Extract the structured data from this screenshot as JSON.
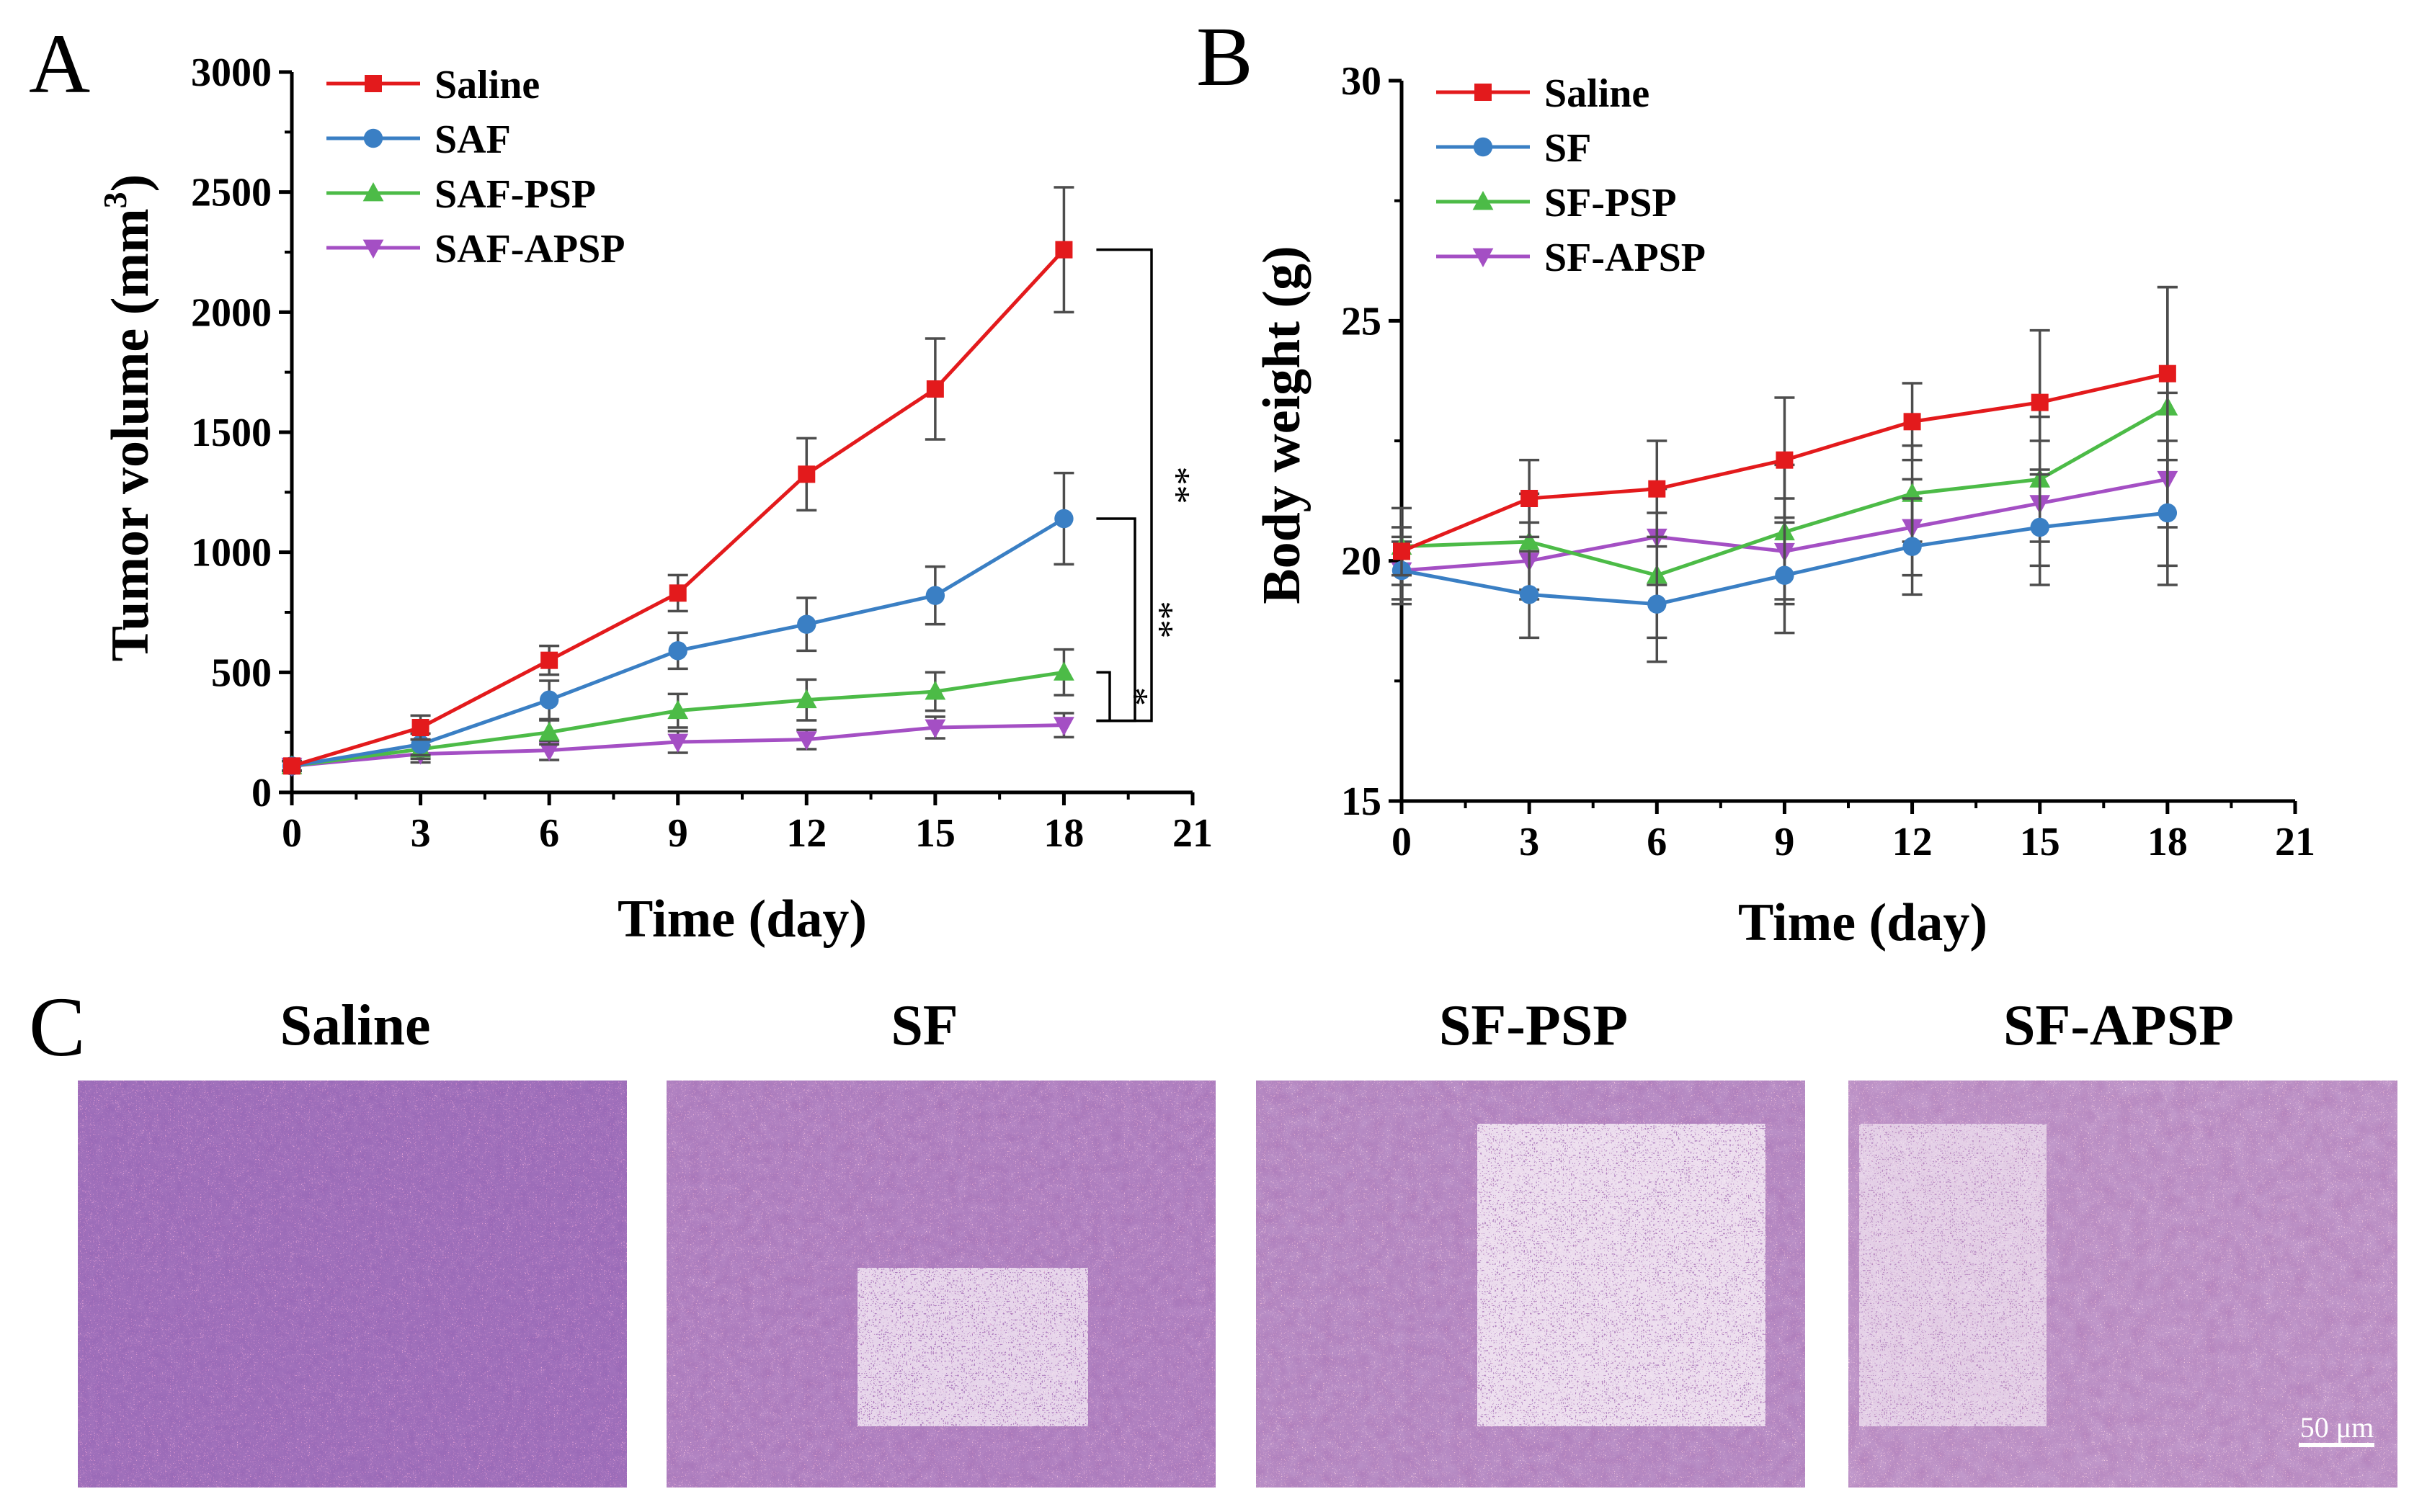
{
  "panel_labels": {
    "a": "A",
    "b": "B",
    "c": "C"
  },
  "colors": {
    "saline": "#e31a1c",
    "saf": "#3a7fc4",
    "psp": "#4cbb47",
    "apsp": "#a44fc4"
  },
  "chart_data": [
    {
      "id": "A",
      "type": "line",
      "title": "",
      "xlabel": "Time (day)",
      "ylabel": "Tumor volume (mm³)",
      "ylabel_main": "Tumor volume (mm",
      "ylabel_sup": "3",
      "ylabel_end": ")",
      "xlim": [
        0,
        21
      ],
      "ylim": [
        0,
        3000
      ],
      "xticks": [
        0,
        3,
        6,
        9,
        12,
        15,
        18,
        21
      ],
      "yticks": [
        0,
        500,
        1000,
        1500,
        2000,
        2500,
        3000
      ],
      "x": [
        0,
        3,
        6,
        9,
        12,
        15,
        18
      ],
      "legend_position": "top-left",
      "series": [
        {
          "name": "Saline",
          "color": "#e31a1c",
          "marker": "square",
          "values": [
            110,
            270,
            550,
            830,
            1325,
            1680,
            2260
          ],
          "errors": [
            20,
            50,
            60,
            75,
            150,
            210,
            260
          ]
        },
        {
          "name": "SAF",
          "color": "#3a7fc4",
          "marker": "circle",
          "values": [
            110,
            200,
            385,
            590,
            700,
            820,
            1140
          ],
          "errors": [
            20,
            45,
            80,
            75,
            110,
            120,
            190
          ]
        },
        {
          "name": "SAF-PSP",
          "color": "#4cbb47",
          "marker": "triangle-up",
          "values": [
            110,
            180,
            250,
            340,
            385,
            420,
            500
          ],
          "errors": [
            20,
            40,
            50,
            70,
            85,
            80,
            95
          ]
        },
        {
          "name": "SAF-APSP",
          "color": "#a44fc4",
          "marker": "triangle-down",
          "values": [
            110,
            160,
            175,
            210,
            220,
            270,
            280
          ],
          "errors": [
            20,
            35,
            40,
            45,
            40,
            45,
            50
          ]
        }
      ],
      "annotations": [
        {
          "label": "**",
          "from_value": 2260,
          "to_value": 280
        },
        {
          "label": "**",
          "from_value": 1140,
          "to_value": 280
        },
        {
          "label": "*",
          "from_value": 500,
          "to_value": 280
        }
      ]
    },
    {
      "id": "B",
      "type": "line",
      "title": "",
      "xlabel": "Time (day)",
      "ylabel": "Body weight (g)",
      "xlim": [
        0,
        21
      ],
      "ylim": [
        15,
        30
      ],
      "xticks": [
        0,
        3,
        6,
        9,
        12,
        15,
        18,
        21
      ],
      "yticks": [
        15,
        20,
        25,
        30
      ],
      "x": [
        0,
        3,
        6,
        9,
        12,
        15,
        18
      ],
      "legend_position": "top-left",
      "series": [
        {
          "name": "Saline",
          "color": "#e31a1c",
          "marker": "square",
          "values": [
            20.2,
            21.3,
            21.5,
            22.1,
            22.9,
            23.3,
            23.9
          ],
          "errors": [
            0.5,
            0.8,
            1.0,
            1.3,
            0.8,
            1.5,
            1.8
          ]
        },
        {
          "name": "SF",
          "color": "#3a7fc4",
          "marker": "circle",
          "values": [
            19.8,
            19.3,
            19.1,
            19.7,
            20.3,
            20.7,
            21.0
          ],
          "errors": [
            0.7,
            0.9,
            1.2,
            1.2,
            1.0,
            1.2,
            1.5
          ]
        },
        {
          "name": "SF-PSP",
          "color": "#4cbb47",
          "marker": "triangle-up",
          "values": [
            20.3,
            20.4,
            19.7,
            20.6,
            21.4,
            21.7,
            23.2
          ],
          "errors": [
            0.8,
            1.0,
            1.3,
            1.4,
            1.0,
            1.3,
            2.5
          ]
        },
        {
          "name": "SF-APSP",
          "color": "#a44fc4",
          "marker": "triangle-down",
          "values": [
            19.8,
            20.0,
            20.5,
            20.2,
            20.7,
            21.2,
            21.7
          ],
          "errors": [
            0.6,
            0.8,
            1.0,
            1.1,
            1.0,
            1.3,
            1.8
          ]
        }
      ]
    }
  ],
  "histology": {
    "titles": [
      "Saline",
      "SF",
      "SF-PSP",
      "SF-APSP"
    ],
    "scale_bar_label": "50 μm"
  }
}
